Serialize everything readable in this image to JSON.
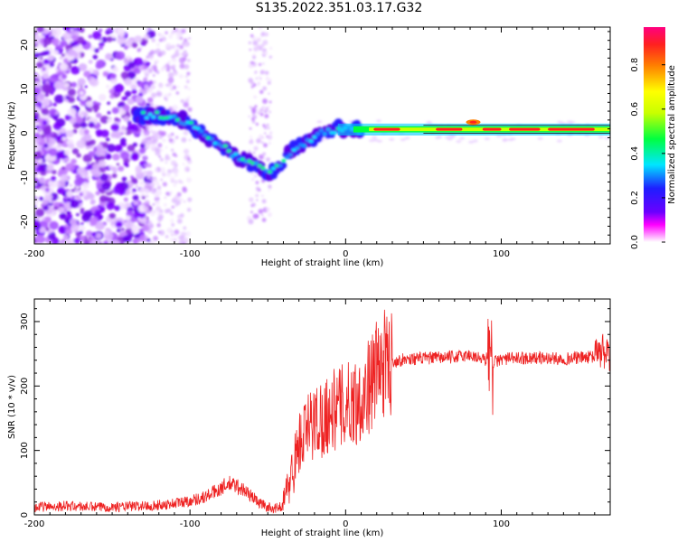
{
  "title": "S135.2022.351.03.17.G32",
  "chart_data": [
    {
      "type": "heatmap",
      "xlabel": "Height of straight line (km)",
      "ylabel": "Frequency (Hz)",
      "xlim": [
        -200,
        170
      ],
      "ylim": [
        -25,
        24
      ],
      "xticks": [
        -200,
        -100,
        0,
        100
      ],
      "yticks": [
        -20,
        -10,
        0,
        10,
        20
      ],
      "colorbar": {
        "label": "Normalized spectral amplitude",
        "range": [
          0,
          0.97
        ],
        "ticks": [
          0.0,
          0.2,
          0.4,
          0.6,
          0.8
        ],
        "colors": [
          "#ffffff",
          "#6a00ff",
          "#1e1eff",
          "#00e6ff",
          "#00ff40",
          "#c8ff00",
          "#ffff00",
          "#ff8000",
          "#ff2020",
          "#ff0080"
        ]
      },
      "ridge": {
        "x": [
          -135,
          -120,
          -105,
          -95,
          -85,
          -75,
          -65,
          -55,
          -48,
          -42,
          -35,
          -25,
          -15,
          -5,
          0,
          10,
          20,
          40,
          60,
          80,
          90,
          110,
          130,
          150,
          170
        ],
        "y": [
          4,
          4,
          3,
          1,
          -2,
          -4,
          -6,
          -8,
          -9,
          -7,
          -4,
          -2,
          0,
          1,
          1,
          1,
          0.8,
          1,
          1.5,
          2,
          1.5,
          1,
          0.8,
          0.8,
          0.8
        ]
      }
    },
    {
      "type": "line",
      "xlabel": "Height of straight line (km)",
      "ylabel": "SNR (10 * v/v)",
      "xlim": [
        -200,
        170
      ],
      "ylim": [
        0,
        335
      ],
      "xticks": [
        -200,
        -100,
        0,
        100
      ],
      "yticks": [
        0,
        100,
        200,
        300
      ],
      "series": [
        {
          "color": "#ee2222",
          "x": [
            -200,
            -180,
            -160,
            -140,
            -120,
            -110,
            -100,
            -90,
            -85,
            -80,
            -75,
            -70,
            -65,
            -60,
            -55,
            -50,
            -45,
            -40,
            -35,
            -30,
            -25,
            -20,
            -15,
            -10,
            -5,
            0,
            5,
            10,
            15,
            20,
            25,
            30,
            40,
            50,
            60,
            70,
            80,
            90,
            92,
            94,
            100,
            110,
            120,
            130,
            140,
            150,
            160,
            165,
            170
          ],
          "y": [
            12,
            14,
            12,
            13,
            15,
            18,
            22,
            28,
            35,
            42,
            48,
            45,
            38,
            28,
            18,
            12,
            10,
            15,
            60,
            110,
            130,
            145,
            150,
            160,
            165,
            170,
            175,
            180,
            200,
            225,
            235,
            238,
            242,
            243,
            244,
            245,
            248,
            240,
            255,
            235,
            242,
            243,
            244,
            243,
            242,
            244,
            245,
            255,
            240
          ]
        }
      ]
    }
  ]
}
